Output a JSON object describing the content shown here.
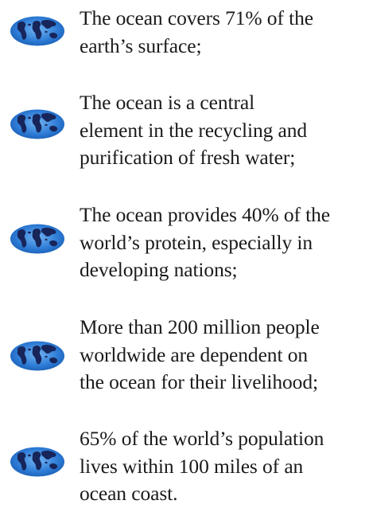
{
  "facts": [
    {
      "text": "The ocean covers 71% of the\nearth’s surface;",
      "icon": "globe-icon"
    },
    {
      "text": "The ocean is a central\nelement in the recycling and\npurification of fresh water;",
      "icon": "globe-icon"
    },
    {
      "text": "The ocean provides 40% of the\nworld’s protein, especially in\ndeveloping nations;",
      "icon": "globe-icon"
    },
    {
      "text": "More than 200 million people\nworldwide are dependent on\nthe ocean for their livelihood;",
      "icon": "globe-icon"
    },
    {
      "text": "65% of the world’s population\nlives within 100 miles of an\nocean coast.",
      "icon": "globe-icon"
    }
  ],
  "colors": {
    "ocean": "#2d7bd6",
    "ocean_edge": "#1a5db2",
    "land": "#17255a",
    "text": "#1b1b1b"
  }
}
